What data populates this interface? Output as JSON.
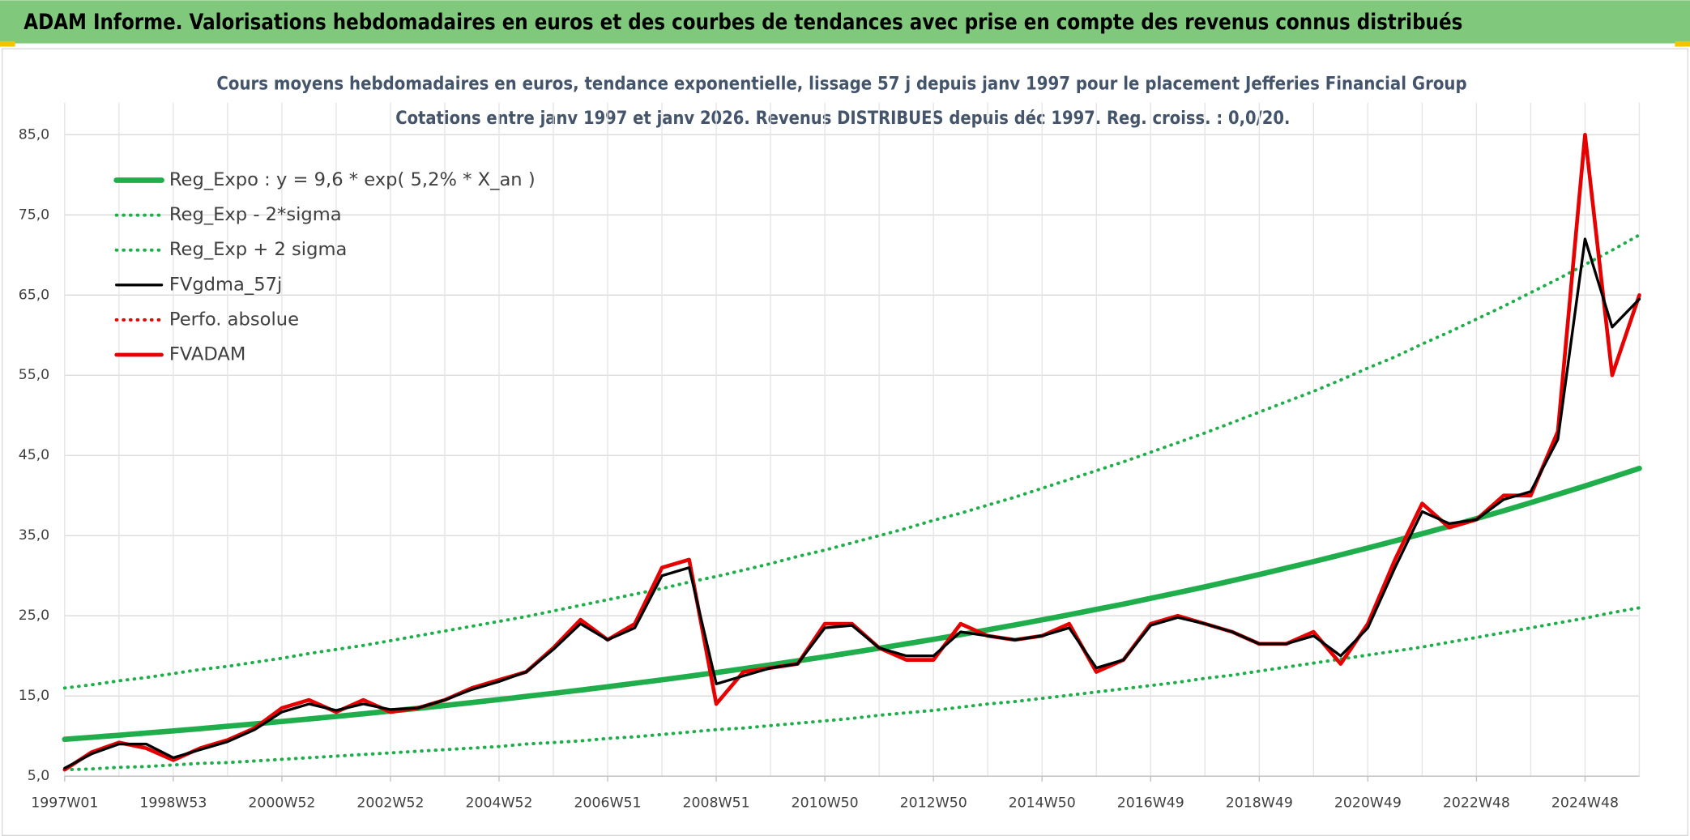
{
  "header": {
    "title": "ADAM Informe. Valorisations hebdomadaires en euros et des courbes de tendances avec prise en compte des revenus connus distribués"
  },
  "chart_data": {
    "type": "line",
    "title": "Cours moyens hebdomadaires en euros, tendance exponentielle, lissage 57 j depuis janv 1997 pour le placement Jefferies Financial Group",
    "subtitle": "Cotations entre janv 1997 et janv 2026. Revenus DISTRIBUES depuis déc 1997. Reg. croiss. : 0,0/20.",
    "categories": [
      "1997W01",
      null,
      null,
      null,
      "1998W53",
      null,
      null,
      null,
      "2000W52",
      null,
      null,
      null,
      "2002W52",
      null,
      null,
      null,
      "2004W52",
      null,
      null,
      null,
      "2006W51",
      null,
      null,
      null,
      "2008W51",
      null,
      null,
      null,
      "2010W50",
      null,
      null,
      null,
      "2012W50",
      null,
      null,
      null,
      "2014W50",
      null,
      null,
      null,
      "2016W49",
      null,
      null,
      null,
      "2018W49",
      null,
      null,
      null,
      "2020W49",
      null,
      null,
      null,
      "2022W48",
      null,
      null,
      null,
      "2024W48",
      null,
      null
    ],
    "ylim": [
      5,
      89
    ],
    "yticks": [
      {
        "value": 5,
        "label": "5,0"
      },
      {
        "value": 15,
        "label": "15,0"
      },
      {
        "value": 25,
        "label": "25,0"
      },
      {
        "value": 35,
        "label": "35,0"
      },
      {
        "value": 45,
        "label": "45,0"
      },
      {
        "value": 55,
        "label": "55,0"
      },
      {
        "value": 65,
        "label": "65,0"
      },
      {
        "value": 75,
        "label": "75,0"
      },
      {
        "value": 85,
        "label": "85,0"
      }
    ],
    "grid": true,
    "legend": "top-left",
    "series": [
      {
        "name": "Reg_Expo : y = 9,6 * exp( 5,2% *  X_an )",
        "color": "#1fae4b",
        "style": "solid",
        "values": [
          9.6,
          9.85,
          10.11,
          10.38,
          10.65,
          10.93,
          11.22,
          11.52,
          11.82,
          12.13,
          12.45,
          12.78,
          13.12,
          13.46,
          13.82,
          14.18,
          14.56,
          14.94,
          15.33,
          15.74,
          16.15,
          16.58,
          17.01,
          17.46,
          17.92,
          18.4,
          18.88,
          19.38,
          19.89,
          20.41,
          20.95,
          21.5,
          22.07,
          22.65,
          23.25,
          23.86,
          24.49,
          25.13,
          25.8,
          26.47,
          27.17,
          27.89,
          28.62,
          29.38,
          30.15,
          30.95,
          31.76,
          32.6,
          33.46,
          34.34,
          35.24,
          36.17,
          37.12,
          38.1,
          39.11,
          40.14,
          41.19,
          42.28,
          43.39
        ]
      },
      {
        "name": "Reg_Exp - 2*sigma",
        "color": "#1fae4b",
        "style": "dotted",
        "values": [
          5.8,
          5.9,
          6.1,
          6.2,
          6.4,
          6.6,
          6.7,
          6.9,
          7.1,
          7.3,
          7.5,
          7.7,
          7.9,
          8.1,
          8.3,
          8.5,
          8.7,
          9.0,
          9.2,
          9.4,
          9.7,
          9.9,
          10.2,
          10.5,
          10.8,
          11.0,
          11.3,
          11.6,
          11.9,
          12.2,
          12.6,
          12.9,
          13.2,
          13.6,
          14.0,
          14.3,
          14.7,
          15.1,
          15.5,
          15.9,
          16.3,
          16.7,
          17.2,
          17.6,
          18.1,
          18.6,
          19.1,
          19.6,
          20.1,
          20.6,
          21.1,
          21.7,
          22.3,
          22.9,
          23.5,
          24.1,
          24.7,
          25.4,
          26.0
        ]
      },
      {
        "name": "Reg_Exp + 2 sigma",
        "color": "#1fae4b",
        "style": "dotted",
        "values": [
          16.0,
          16.4,
          16.9,
          17.3,
          17.8,
          18.3,
          18.7,
          19.2,
          19.7,
          20.3,
          20.8,
          21.3,
          21.9,
          22.5,
          23.1,
          23.7,
          24.3,
          24.9,
          25.6,
          26.3,
          27.0,
          27.7,
          28.4,
          29.2,
          29.9,
          30.7,
          31.5,
          32.4,
          33.2,
          34.1,
          35.0,
          35.9,
          36.9,
          37.8,
          38.8,
          39.8,
          40.9,
          42.0,
          43.1,
          44.2,
          45.4,
          46.6,
          47.8,
          49.1,
          50.4,
          51.7,
          53.0,
          54.4,
          55.9,
          57.3,
          58.9,
          60.4,
          62.0,
          63.6,
          65.3,
          67.0,
          68.8,
          70.6,
          72.5
        ]
      },
      {
        "name": "FVgdma_57j",
        "color": "#000000",
        "style": "solid",
        "values": [
          6,
          7.8,
          9,
          9,
          7.3,
          8.3,
          9.3,
          10.8,
          13,
          14,
          13.2,
          14,
          13.3,
          13.5,
          14.5,
          15.8,
          16.8,
          18,
          20.8,
          24,
          22,
          23.5,
          30,
          31,
          16.5,
          17.5,
          18.5,
          19,
          23.5,
          23.8,
          21,
          20,
          20,
          23,
          22.5,
          22,
          22.5,
          23.5,
          18.5,
          19.5,
          23.8,
          24.8,
          24,
          23,
          21.5,
          21.5,
          22.5,
          20,
          23.5,
          31,
          38,
          36.5,
          37,
          39.5,
          40.5,
          47,
          72,
          61,
          64.5
        ]
      },
      {
        "name": "Perfo. absolue",
        "color": "#e60000",
        "style": "dotted",
        "values": [
          null,
          null,
          null,
          null,
          null,
          null,
          null,
          null,
          null,
          null,
          null,
          null,
          null,
          null,
          null,
          null,
          null,
          null,
          null,
          null,
          null,
          null,
          null,
          null,
          null,
          null,
          null,
          null,
          null,
          null,
          null,
          null,
          null,
          null,
          null,
          null,
          null,
          null,
          null,
          null,
          null,
          null,
          null,
          null,
          null,
          null,
          null,
          null,
          null,
          null,
          null,
          null,
          null,
          null,
          null,
          null,
          null,
          null,
          null
        ]
      },
      {
        "name": "FVADAM",
        "color": "#e60000",
        "style": "solid",
        "values": [
          5.8,
          8,
          9.2,
          8.5,
          7,
          8.5,
          9.5,
          11,
          13.5,
          14.5,
          13,
          14.5,
          13,
          13.5,
          14.5,
          16,
          17,
          18,
          21,
          24.5,
          22,
          24,
          31,
          32,
          14,
          18,
          18.5,
          19,
          24,
          24,
          21,
          19.5,
          19.5,
          24,
          22.5,
          22,
          22.5,
          24,
          18,
          19.5,
          24,
          25,
          24,
          23,
          21.5,
          21.5,
          23,
          19,
          24,
          32,
          39,
          36,
          37,
          40,
          40,
          48,
          85,
          55,
          65
        ]
      }
    ]
  }
}
